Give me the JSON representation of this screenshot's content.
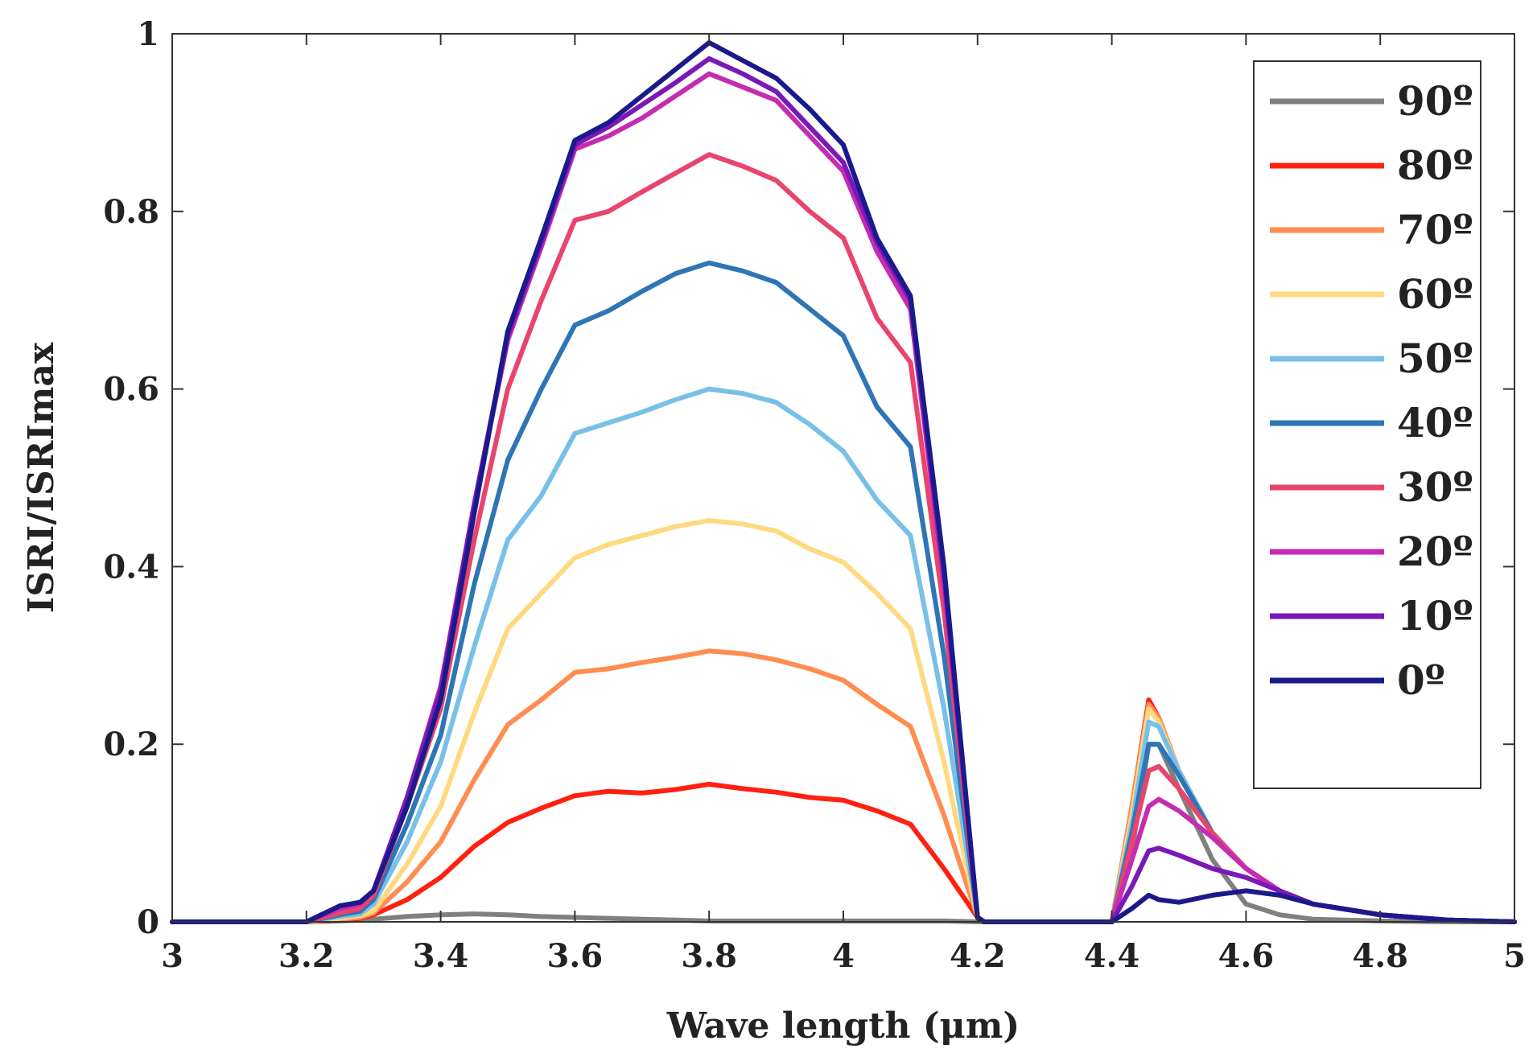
{
  "chart_data": {
    "type": "line",
    "title": "",
    "xlabel": "Wave length (μm)",
    "ylabel": "ISRI/ISRImax",
    "xlim": [
      3,
      5
    ],
    "ylim": [
      0,
      1
    ],
    "xticks": [
      3,
      3.2,
      3.4,
      3.6,
      3.8,
      4,
      4.2,
      4.4,
      4.6,
      4.8,
      5
    ],
    "xtick_labels": [
      "3",
      "3.2",
      "3.4",
      "3.6",
      "3.8",
      "4",
      "4.2",
      "4.4",
      "4.6",
      "4.8",
      "5"
    ],
    "yticks": [
      0,
      0.2,
      0.4,
      0.6,
      0.8,
      1
    ],
    "ytick_labels": [
      "0",
      "0.2",
      "0.4",
      "0.6",
      "0.8",
      "1"
    ],
    "grid": false,
    "legend_position": "top-right",
    "x": [
      3.0,
      3.1,
      3.2,
      3.25,
      3.28,
      3.3,
      3.35,
      3.4,
      3.45,
      3.5,
      3.55,
      3.6,
      3.65,
      3.7,
      3.75,
      3.8,
      3.85,
      3.9,
      3.95,
      4.0,
      4.05,
      4.1,
      4.15,
      4.2,
      4.21,
      4.25,
      4.35,
      4.4,
      4.43,
      4.455,
      4.47,
      4.5,
      4.55,
      4.6,
      4.65,
      4.7,
      4.8,
      4.9,
      5.0
    ],
    "series": [
      {
        "name": "90º",
        "color": "#808080",
        "values": [
          0,
          0,
          0,
          0.001,
          0.002,
          0.003,
          0.006,
          0.008,
          0.009,
          0.008,
          0.006,
          0.005,
          0.004,
          0.003,
          0.002,
          0.001,
          0.001,
          0.001,
          0.001,
          0.001,
          0.001,
          0.001,
          0.001,
          0,
          0,
          null,
          null,
          0,
          0.08,
          0.2,
          0.2,
          0.15,
          0.07,
          0.02,
          0.008,
          0.003,
          0.001,
          0,
          0
        ]
      },
      {
        "name": "80º",
        "color": "#ff2010",
        "values": [
          0,
          0,
          0,
          0.002,
          0.004,
          0.008,
          0.025,
          0.05,
          0.085,
          0.112,
          0.128,
          0.142,
          0.147,
          0.145,
          0.149,
          0.155,
          0.15,
          0.146,
          0.14,
          0.137,
          0.125,
          0.11,
          0.06,
          0.005,
          0,
          null,
          null,
          0,
          0.13,
          0.25,
          0.23,
          0.17,
          0.1,
          0.06,
          0.035,
          0.02,
          0.008,
          0.002,
          0
        ]
      },
      {
        "name": "70º",
        "color": "#ff8c50",
        "values": [
          0,
          0,
          0,
          0.003,
          0.005,
          0.01,
          0.045,
          0.09,
          0.16,
          0.222,
          0.25,
          0.281,
          0.285,
          0.292,
          0.298,
          0.305,
          0.302,
          0.295,
          0.285,
          0.272,
          0.245,
          0.22,
          0.12,
          0.005,
          0,
          null,
          null,
          0,
          0.13,
          0.245,
          0.23,
          0.17,
          0.1,
          0.06,
          0.035,
          0.02,
          0.008,
          0.002,
          0
        ]
      },
      {
        "name": "60º",
        "color": "#ffd980",
        "values": [
          0,
          0,
          0,
          0.004,
          0.007,
          0.012,
          0.065,
          0.13,
          0.235,
          0.33,
          0.37,
          0.41,
          0.425,
          0.435,
          0.445,
          0.452,
          0.448,
          0.44,
          0.42,
          0.405,
          0.37,
          0.33,
          0.18,
          0.005,
          0,
          null,
          null,
          0,
          0.12,
          0.24,
          0.225,
          0.17,
          0.1,
          0.06,
          0.035,
          0.02,
          0.008,
          0.002,
          0
        ]
      },
      {
        "name": "50º",
        "color": "#78c0e8",
        "values": [
          0,
          0,
          0,
          0.006,
          0.009,
          0.02,
          0.09,
          0.18,
          0.31,
          0.43,
          0.48,
          0.55,
          0.562,
          0.574,
          0.588,
          0.6,
          0.595,
          0.585,
          0.56,
          0.53,
          0.475,
          0.435,
          0.24,
          0.005,
          0,
          null,
          null,
          0,
          0.11,
          0.225,
          0.22,
          0.17,
          0.1,
          0.06,
          0.035,
          0.02,
          0.008,
          0.002,
          0
        ]
      },
      {
        "name": "40º",
        "color": "#2e75b6",
        "values": [
          0,
          0,
          0,
          0.008,
          0.012,
          0.025,
          0.11,
          0.21,
          0.38,
          0.52,
          0.6,
          0.672,
          0.688,
          0.71,
          0.73,
          0.742,
          0.733,
          0.72,
          0.69,
          0.66,
          0.58,
          0.535,
          0.3,
          0.005,
          0,
          null,
          null,
          0,
          0.1,
          0.2,
          0.2,
          0.165,
          0.1,
          0.06,
          0.035,
          0.02,
          0.008,
          0.002,
          0
        ]
      },
      {
        "name": "30º",
        "color": "#e8456c",
        "values": [
          0,
          0,
          0,
          0.01,
          0.015,
          0.03,
          0.13,
          0.24,
          0.43,
          0.6,
          0.7,
          0.79,
          0.8,
          0.822,
          0.843,
          0.864,
          0.851,
          0.835,
          0.8,
          0.77,
          0.68,
          0.63,
          0.35,
          0.005,
          0,
          null,
          null,
          0,
          0.09,
          0.17,
          0.175,
          0.15,
          0.1,
          0.06,
          0.035,
          0.02,
          0.008,
          0.002,
          0
        ]
      },
      {
        "name": "20º",
        "color": "#c42cb2",
        "values": [
          0,
          0,
          0,
          0.015,
          0.02,
          0.035,
          0.14,
          0.265,
          0.47,
          0.655,
          0.76,
          0.87,
          0.885,
          0.905,
          0.93,
          0.955,
          0.94,
          0.925,
          0.885,
          0.845,
          0.755,
          0.69,
          0.38,
          0.005,
          0,
          null,
          null,
          0,
          0.07,
          0.13,
          0.138,
          0.125,
          0.095,
          0.06,
          0.035,
          0.02,
          0.008,
          0.002,
          0
        ]
      },
      {
        "name": "10º",
        "color": "#7a18b8",
        "values": [
          0,
          0,
          0,
          0.018,
          0.022,
          0.035,
          0.14,
          0.26,
          0.47,
          0.66,
          0.765,
          0.875,
          0.895,
          0.92,
          0.945,
          0.972,
          0.955,
          0.935,
          0.895,
          0.855,
          0.765,
          0.7,
          0.39,
          0.005,
          0,
          null,
          null,
          0,
          0.04,
          0.08,
          0.083,
          0.075,
          0.06,
          0.05,
          0.035,
          0.02,
          0.008,
          0.002,
          0
        ]
      },
      {
        "name": "0º",
        "color": "#1a1a8c",
        "values": [
          0,
          0,
          0,
          0.018,
          0.022,
          0.035,
          0.13,
          0.25,
          0.46,
          0.665,
          0.77,
          0.88,
          0.9,
          0.93,
          0.96,
          0.99,
          0.97,
          0.95,
          0.915,
          0.875,
          0.77,
          0.705,
          0.4,
          0.005,
          0,
          0,
          0,
          0,
          0.015,
          0.03,
          0.025,
          0.022,
          0.03,
          0.035,
          0.03,
          0.02,
          0.008,
          0.002,
          0
        ]
      }
    ]
  }
}
